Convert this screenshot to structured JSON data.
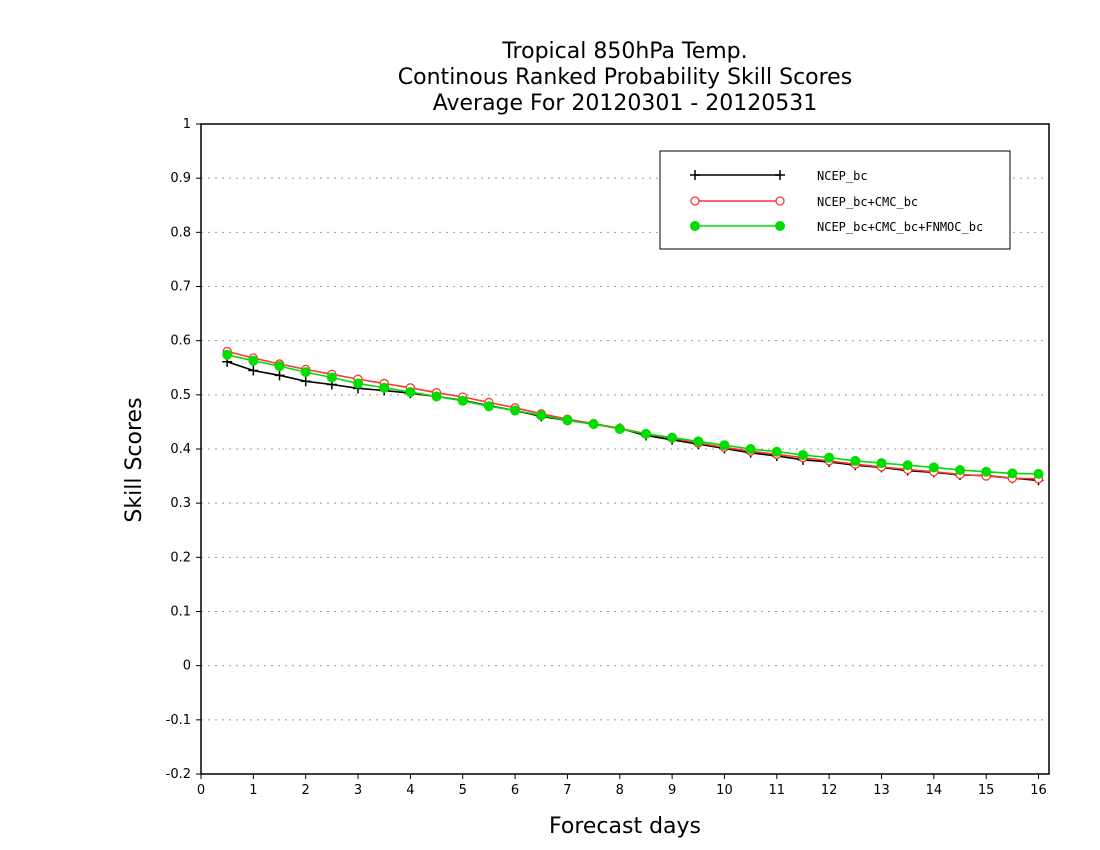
{
  "chart_data": {
    "type": "line",
    "title": [
      "Tropical 850hPa Temp.",
      "Continous Ranked Probability Skill Scores",
      "Average For 20120301 - 20120531"
    ],
    "xlabel": "Forecast days",
    "ylabel": "Skill Scores",
    "xlim": [
      0,
      16.2
    ],
    "ylim": [
      -0.2,
      1
    ],
    "xticks": [
      0,
      1,
      2,
      3,
      4,
      5,
      6,
      7,
      8,
      9,
      10,
      11,
      12,
      13,
      14,
      15,
      16
    ],
    "yticks": [
      -0.2,
      -0.1,
      0,
      0.1,
      0.2,
      0.3,
      0.4,
      0.5,
      0.6,
      0.7,
      0.8,
      0.9,
      1
    ],
    "ytick_labels": [
      "-0.2",
      "-0.1",
      "0",
      "0.1",
      "0.2",
      "0.3",
      "0.4",
      "0.5",
      "0.6",
      "0.7",
      "0.8",
      "0.9",
      "1"
    ],
    "grid": "horizontal dotted",
    "legend_position": "top-right",
    "x": [
      0.5,
      1,
      1.5,
      2,
      2.5,
      3,
      3.5,
      4,
      4.5,
      5,
      5.5,
      6,
      6.5,
      7,
      7.5,
      8,
      8.5,
      9,
      9.5,
      10,
      10.5,
      11,
      11.5,
      12,
      12.5,
      13,
      13.5,
      14,
      14.5,
      15,
      15.5,
      16
    ],
    "series": [
      {
        "name": "NCEP_bc",
        "color": "#000000",
        "marker": "plus",
        "values": [
          0.561,
          0.545,
          0.536,
          0.525,
          0.519,
          0.512,
          0.508,
          0.503,
          0.497,
          0.49,
          0.48,
          0.471,
          0.46,
          0.453,
          0.446,
          0.438,
          0.425,
          0.417,
          0.409,
          0.401,
          0.393,
          0.387,
          0.38,
          0.376,
          0.37,
          0.366,
          0.36,
          0.357,
          0.352,
          0.351,
          0.346,
          0.342
        ]
      },
      {
        "name": "NCEP_bc+CMC_bc",
        "color": "#ff3333",
        "marker": "open-circle",
        "values": [
          0.58,
          0.568,
          0.557,
          0.547,
          0.538,
          0.529,
          0.521,
          0.513,
          0.504,
          0.496,
          0.486,
          0.476,
          0.465,
          0.455,
          0.447,
          0.438,
          0.428,
          0.42,
          0.411,
          0.403,
          0.396,
          0.39,
          0.384,
          0.378,
          0.372,
          0.367,
          0.362,
          0.358,
          0.353,
          0.35,
          0.346,
          0.345
        ]
      },
      {
        "name": "NCEP_bc+CMC_bc+FNMOC_bc",
        "color": "#00dd00",
        "marker": "filled-circle",
        "values": [
          0.574,
          0.563,
          0.553,
          0.542,
          0.532,
          0.521,
          0.513,
          0.505,
          0.497,
          0.489,
          0.479,
          0.471,
          0.462,
          0.453,
          0.446,
          0.437,
          0.428,
          0.421,
          0.414,
          0.407,
          0.4,
          0.395,
          0.389,
          0.384,
          0.378,
          0.374,
          0.37,
          0.366,
          0.361,
          0.358,
          0.355,
          0.354
        ]
      }
    ]
  }
}
